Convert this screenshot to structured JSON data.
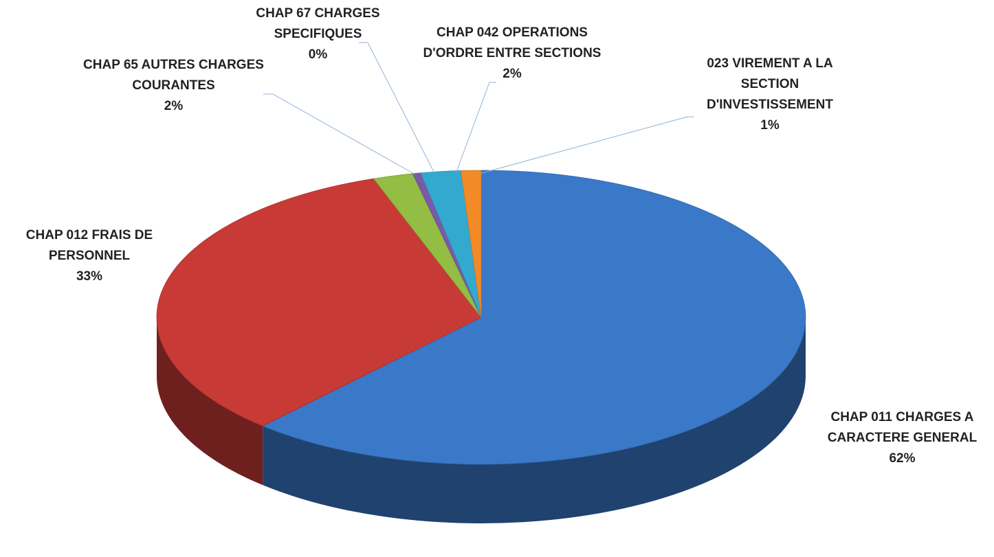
{
  "chart_data": {
    "type": "pie3d",
    "categories": [
      "CHAP 011 CHARGES A CARACTERE GENERAL",
      "CHAP 012 FRAIS DE PERSONNEL",
      "CHAP 65 AUTRES CHARGES COURANTES",
      "CHAP 67 CHARGES SPECIFIQUES",
      "CHAP 042 OPERATIONS D'ORDRE ENTRE SECTIONS",
      "023 VIREMENT A LA SECTION D'INVESTISSEMENT"
    ],
    "values": [
      62,
      33,
      2,
      0.4,
      2,
      1
    ],
    "value_labels": [
      "62%",
      "33%",
      "2%",
      "0%",
      "2%",
      "1%"
    ],
    "colors": [
      "#3a78c8",
      "#c83a36",
      "#93bd43",
      "#7a5aa6",
      "#33a9cf",
      "#f28a28"
    ]
  }
}
